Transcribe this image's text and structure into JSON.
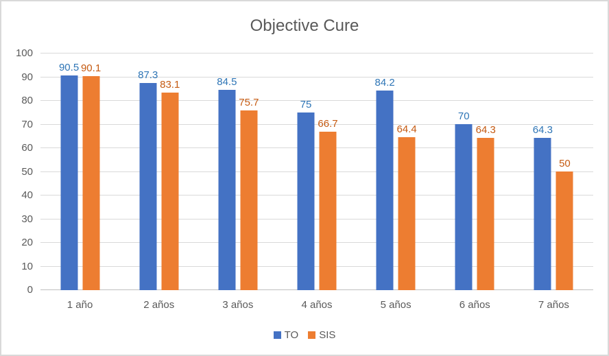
{
  "window": {
    "background": "#FFFFFF",
    "border_color": "#D9D9D9"
  },
  "chart_data": {
    "type": "bar",
    "title": "Objective Cure",
    "title_color": "#595959",
    "categories": [
      "1 año",
      "2 años",
      "3 años",
      "4 años",
      "5 años",
      "6 años",
      "7 años"
    ],
    "series": [
      {
        "name": "TO",
        "color": "#4472C4",
        "label_color": "#2E75B6",
        "values": [
          90.5,
          87.3,
          84.5,
          75,
          84.2,
          70,
          64.3
        ]
      },
      {
        "name": "SIS",
        "color": "#ED7D31",
        "label_color": "#C55A11",
        "values": [
          90.1,
          83.1,
          75.7,
          66.7,
          64.4,
          64.3,
          50
        ]
      }
    ],
    "xlabel": "",
    "ylabel": "",
    "ylim": [
      0,
      100
    ],
    "ytick_step": 10,
    "yticks": [
      0,
      10,
      20,
      30,
      40,
      50,
      60,
      70,
      80,
      90,
      100
    ],
    "grid": true,
    "gridline_color": "#D9D9D9",
    "axis_line_color": "#BFBFBF",
    "axis_text_color": "#595959",
    "legend_position": "bottom",
    "data_labels": true
  }
}
